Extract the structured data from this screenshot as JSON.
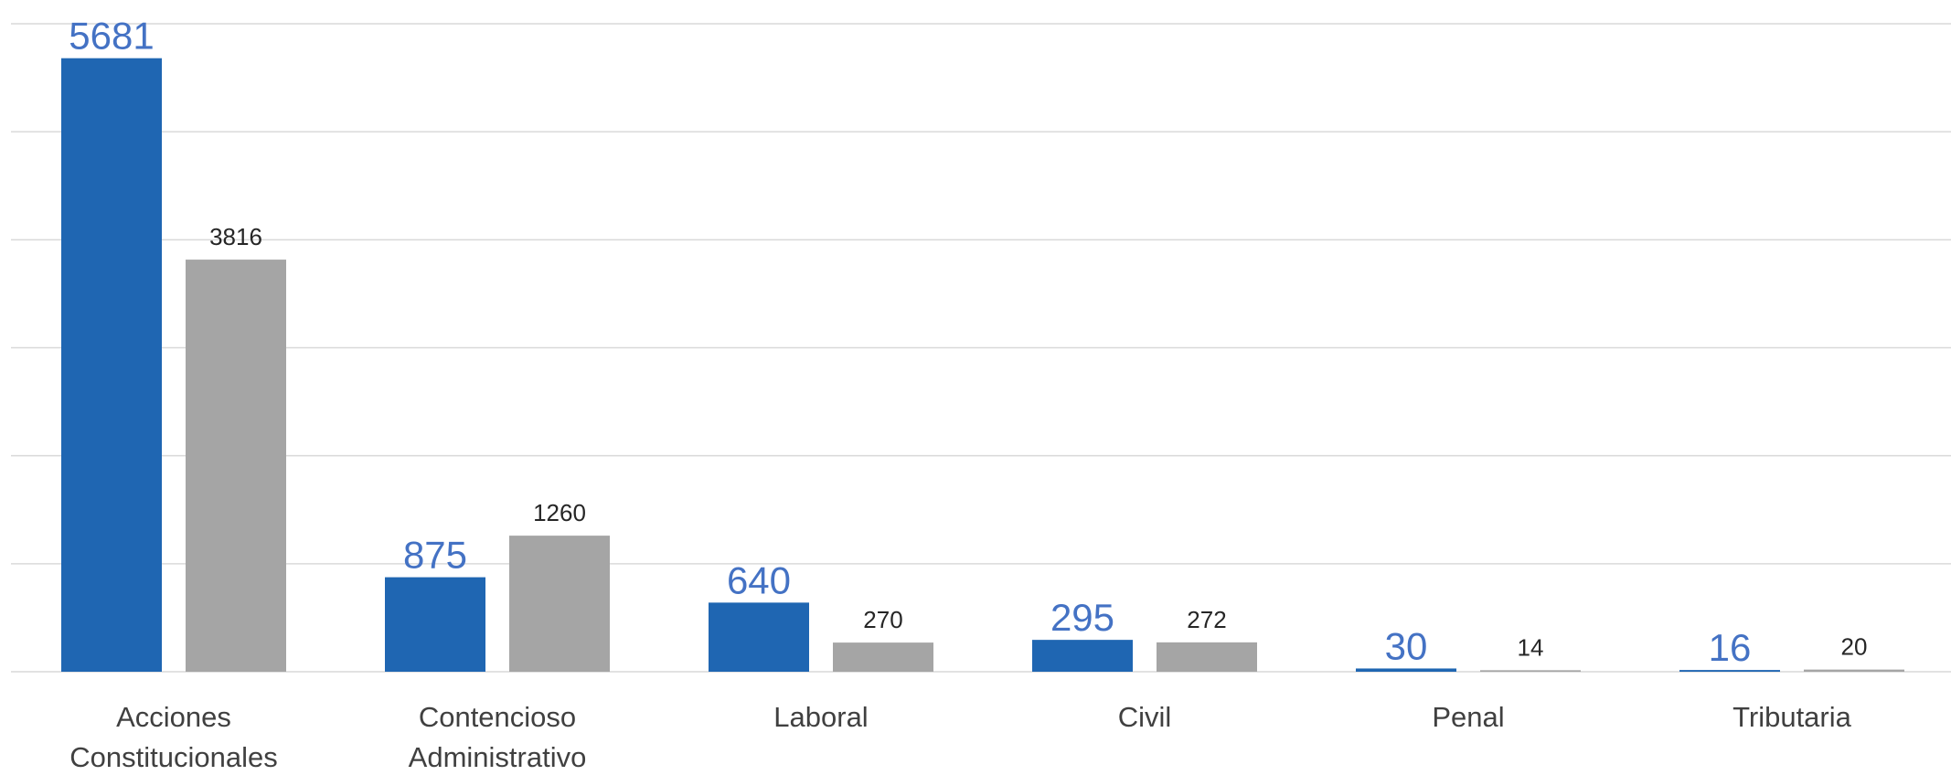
{
  "chart_data": {
    "type": "bar",
    "categories": [
      [
        "Acciones",
        "Constitucionales"
      ],
      [
        "Contencioso",
        "Administrativo"
      ],
      [
        "Laboral"
      ],
      [
        "Civil"
      ],
      [
        "Penal"
      ],
      [
        "Tributaria"
      ]
    ],
    "series": [
      {
        "values": [
          5681,
          875,
          640,
          295,
          30,
          16
        ],
        "color": "#1f66b2",
        "label_color": "#4472c4"
      },
      {
        "values": [
          3816,
          1260,
          270,
          272,
          14,
          20
        ],
        "color": "#a5a5a5",
        "label_color": "#262626"
      }
    ],
    "ylim": [
      0,
      6000
    ],
    "grid": true,
    "title": "",
    "xlabel": "",
    "ylabel": ""
  }
}
